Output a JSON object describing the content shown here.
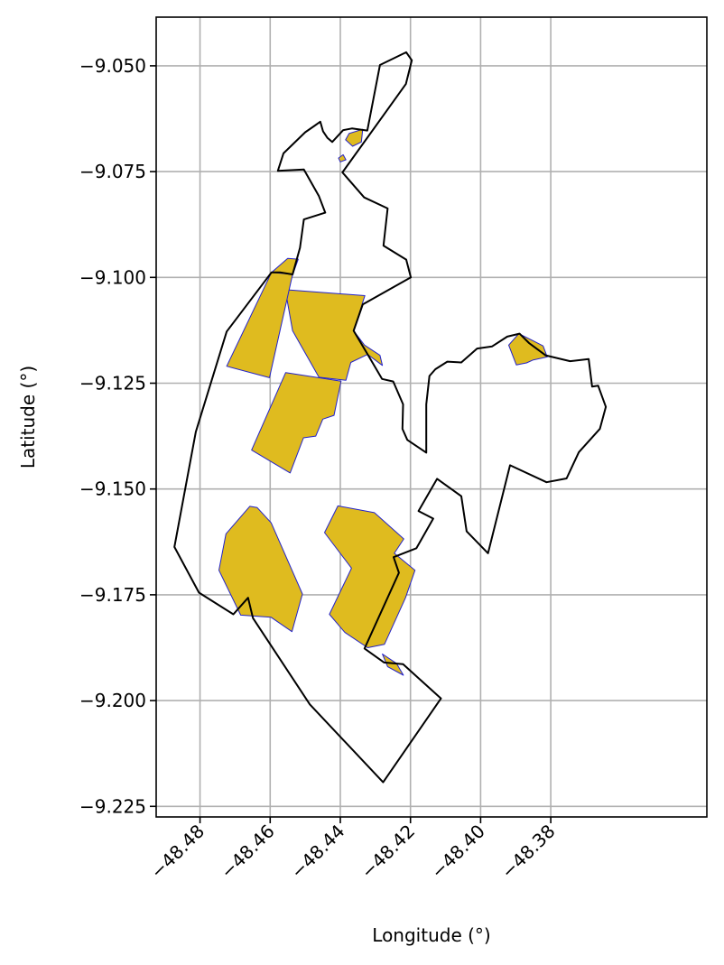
{
  "chart_data": {
    "type": "map",
    "xlabel": "Longitude (°)",
    "ylabel": "Latitude (°)",
    "xlim": [
      -48.4925,
      -48.3355
    ],
    "ylim": [
      -9.2275,
      -9.0385
    ],
    "xticks": [
      -48.48,
      -48.46,
      -48.44,
      -48.42,
      -48.4,
      -48.38
    ],
    "xtick_labels": [
      "−48.48",
      "−48.46",
      "−48.44",
      "−48.42",
      "−48.40",
      "−48.38"
    ],
    "yticks": [
      -9.05,
      -9.075,
      -9.1,
      -9.125,
      -9.15,
      -9.175,
      -9.2,
      -9.225
    ],
    "ytick_labels": [
      "−9.050",
      "−9.075",
      "−9.100",
      "−9.125",
      "−9.150",
      "−9.175",
      "−9.200",
      "−9.225"
    ],
    "grid": true,
    "colors": {
      "fill": "#dfbb1f",
      "parcel_edge": "#2222cc",
      "boundary": "#000000",
      "grid": "#b0b0b0"
    },
    "boundary": [
      [
        -48.4287,
        -9.0498
      ],
      [
        -48.4212,
        -9.0468
      ],
      [
        -48.4196,
        -9.0487
      ],
      [
        -48.4213,
        -9.0543
      ],
      [
        -48.4394,
        -9.0752
      ],
      [
        -48.4332,
        -9.0811
      ],
      [
        -48.4265,
        -9.0837
      ],
      [
        -48.4277,
        -9.0925
      ],
      [
        -48.4212,
        -9.0958
      ],
      [
        -48.4199,
        -9.1
      ],
      [
        -48.4336,
        -9.1064
      ],
      [
        -48.4362,
        -9.1126
      ],
      [
        -48.4322,
        -9.1182
      ],
      [
        -48.4281,
        -9.124
      ],
      [
        -48.4249,
        -9.1246
      ],
      [
        -48.4221,
        -9.13
      ],
      [
        -48.4223,
        -9.1358
      ],
      [
        -48.4209,
        -9.1384
      ],
      [
        -48.4155,
        -9.1414
      ],
      [
        -48.4155,
        -9.13
      ],
      [
        -48.4146,
        -9.1233
      ],
      [
        -48.4129,
        -9.1217
      ],
      [
        -48.4095,
        -9.1199
      ],
      [
        -48.4055,
        -9.1201
      ],
      [
        -48.401,
        -9.1168
      ],
      [
        -48.3967,
        -9.1163
      ],
      [
        -48.3924,
        -9.114
      ],
      [
        -48.3889,
        -9.1133
      ],
      [
        -48.3862,
        -9.1155
      ],
      [
        -48.3815,
        -9.1184
      ],
      [
        -48.3745,
        -9.1198
      ],
      [
        -48.3692,
        -9.1193
      ],
      [
        -48.3682,
        -9.1258
      ],
      [
        -48.3665,
        -9.1256
      ],
      [
        -48.3643,
        -9.1306
      ],
      [
        -48.366,
        -9.1358
      ],
      [
        -48.372,
        -9.1413
      ],
      [
        -48.3755,
        -9.1475
      ],
      [
        -48.3812,
        -9.1484
      ],
      [
        -48.3916,
        -9.1444
      ],
      [
        -48.3979,
        -9.1652
      ],
      [
        -48.404,
        -9.16
      ],
      [
        -48.4055,
        -9.1517
      ],
      [
        -48.4124,
        -9.1476
      ],
      [
        -48.4177,
        -9.1552
      ],
      [
        -48.4135,
        -9.157
      ],
      [
        -48.4183,
        -9.164
      ],
      [
        -48.4248,
        -9.1661
      ],
      [
        -48.4233,
        -9.1698
      ],
      [
        -48.4331,
        -9.1877
      ],
      [
        -48.4275,
        -9.191
      ],
      [
        -48.4221,
        -9.1914
      ],
      [
        -48.418,
        -9.1945
      ],
      [
        -48.4113,
        -9.1995
      ],
      [
        -48.4278,
        -9.2193
      ],
      [
        -48.4487,
        -9.2009
      ],
      [
        -48.4649,
        -9.1805
      ],
      [
        -48.4663,
        -9.1757
      ],
      [
        -48.4705,
        -9.1796
      ],
      [
        -48.4803,
        -9.1745
      ],
      [
        -48.4873,
        -9.1637
      ],
      [
        -48.4812,
        -9.1365
      ],
      [
        -48.4724,
        -9.1128
      ],
      [
        -48.4596,
        -9.0988
      ],
      [
        -48.4572,
        -9.0988
      ],
      [
        -48.4536,
        -9.0993
      ],
      [
        -48.4515,
        -9.093
      ],
      [
        -48.4504,
        -9.0863
      ],
      [
        -48.4443,
        -9.0847
      ],
      [
        -48.4461,
        -9.0808
      ],
      [
        -48.4504,
        -9.0745
      ],
      [
        -48.4578,
        -9.0748
      ],
      [
        -48.4562,
        -9.0707
      ],
      [
        -48.45,
        -9.0657
      ],
      [
        -48.4474,
        -9.0642
      ],
      [
        -48.4457,
        -9.0632
      ],
      [
        -48.4449,
        -9.0655
      ],
      [
        -48.4437,
        -9.067
      ],
      [
        -48.4423,
        -9.068
      ],
      [
        -48.4392,
        -9.0652
      ],
      [
        -48.4367,
        -9.0648
      ],
      [
        -48.4323,
        -9.0653
      ],
      [
        -48.4287,
        -9.0498
      ]
    ],
    "parcels": [
      [
        [
          -48.4336,
          -9.065
        ],
        [
          -48.4375,
          -9.066
        ],
        [
          -48.4385,
          -9.0675
        ],
        [
          -48.4365,
          -9.069
        ],
        [
          -48.434,
          -9.068
        ]
      ],
      [
        [
          -48.4405,
          -9.0718
        ],
        [
          -48.4392,
          -9.071
        ],
        [
          -48.4384,
          -9.0722
        ],
        [
          -48.44,
          -9.0727
        ]
      ],
      [
        [
          -48.455,
          -9.0955
        ],
        [
          -48.452,
          -9.0957
        ],
        [
          -48.4582,
          -9.11
        ],
        [
          -48.4596,
          -9.0988
        ]
      ],
      [
        [
          -48.4557,
          -9.1029
        ],
        [
          -48.433,
          -9.1043
        ],
        [
          -48.4362,
          -9.1126
        ],
        [
          -48.4331,
          -9.116
        ],
        [
          -48.4287,
          -9.1184
        ],
        [
          -48.428,
          -9.1208
        ],
        [
          -48.4322,
          -9.1182
        ],
        [
          -48.437,
          -9.1201
        ],
        [
          -48.4384,
          -9.1243
        ],
        [
          -48.4461,
          -9.1236
        ],
        [
          -48.4536,
          -9.1126
        ]
      ],
      [
        [
          -48.4596,
          -9.0988
        ],
        [
          -48.4536,
          -9.0993
        ],
        [
          -48.4602,
          -9.1237
        ],
        [
          -48.4724,
          -9.121
        ]
      ],
      [
        [
          -48.4556,
          -9.1225
        ],
        [
          -48.4398,
          -9.1245
        ],
        [
          -48.4418,
          -9.1326
        ],
        [
          -48.445,
          -9.1335
        ],
        [
          -48.447,
          -9.1375
        ],
        [
          -48.4505,
          -9.1379
        ],
        [
          -48.4543,
          -9.1462
        ],
        [
          -48.4653,
          -9.1408
        ]
      ],
      [
        [
          -48.4637,
          -9.1544
        ],
        [
          -48.4597,
          -9.158
        ],
        [
          -48.4508,
          -9.1748
        ],
        [
          -48.4538,
          -9.1837
        ],
        [
          -48.4598,
          -9.1803
        ],
        [
          -48.4684,
          -9.1798
        ],
        [
          -48.4746,
          -9.1692
        ],
        [
          -48.4726,
          -9.1606
        ],
        [
          -48.4658,
          -9.1541
        ]
      ],
      [
        [
          -48.4407,
          -9.154
        ],
        [
          -48.4303,
          -9.1556
        ],
        [
          -48.4219,
          -9.1618
        ],
        [
          -48.4246,
          -9.1652
        ],
        [
          -48.4187,
          -9.1692
        ],
        [
          -48.4214,
          -9.1757
        ],
        [
          -48.4274,
          -9.1867
        ],
        [
          -48.4322,
          -9.1875
        ],
        [
          -48.4387,
          -9.1839
        ],
        [
          -48.4431,
          -9.1796
        ],
        [
          -48.4368,
          -9.1687
        ],
        [
          -48.4445,
          -9.1603
        ]
      ],
      [
        [
          -48.428,
          -9.189
        ],
        [
          -48.424,
          -9.1912
        ],
        [
          -48.422,
          -9.194
        ],
        [
          -48.4265,
          -9.192
        ]
      ],
      [
        [
          -48.3891,
          -9.1133
        ],
        [
          -48.385,
          -9.115
        ],
        [
          -48.3822,
          -9.1162
        ],
        [
          -48.381,
          -9.1188
        ],
        [
          -48.385,
          -9.1195
        ],
        [
          -48.3869,
          -9.1202
        ],
        [
          -48.3898,
          -9.1207
        ],
        [
          -48.392,
          -9.116
        ]
      ]
    ]
  }
}
